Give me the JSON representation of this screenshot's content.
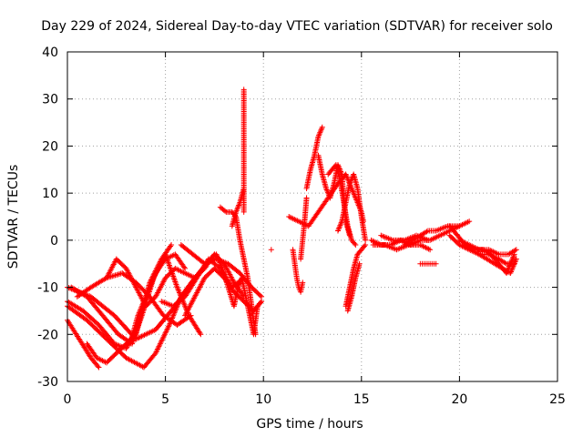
{
  "chart_data": {
    "type": "scatter",
    "title": "Day 229 of 2024, Sidereal Day-to-day VTEC variation (SDTVAR) for receiver solo",
    "xlabel": "GPS time / hours",
    "ylabel": "SDTVAR / TECUs",
    "xlim": [
      0,
      25
    ],
    "ylim": [
      -30,
      40
    ],
    "xticks": [
      0,
      5,
      10,
      15,
      20,
      25
    ],
    "yticks": [
      -30,
      -20,
      -10,
      0,
      10,
      20,
      30,
      40
    ],
    "grid": true,
    "marker": "+",
    "color": "#ff0000",
    "series": [
      {
        "name": "track-1",
        "x": [
          0.0,
          1.0,
          2.0,
          3.0,
          3.9,
          4.5,
          5.2,
          5.8,
          6.5
        ],
        "y": [
          -14,
          -17,
          -21,
          -25,
          -27,
          -24,
          -18,
          -12,
          -8
        ]
      },
      {
        "name": "track-2",
        "x": [
          0.0,
          0.3,
          0.6,
          0.9,
          1.2,
          1.6
        ],
        "y": [
          -17,
          -19,
          -21,
          -23,
          -25,
          -27
        ]
      },
      {
        "name": "track-3",
        "x": [
          0.0,
          1.2,
          2.4,
          3.5,
          4.5,
          5.5,
          6.5,
          7.5
        ],
        "y": [
          -10,
          -12,
          -16,
          -21,
          -19,
          -14,
          -8,
          -3
        ]
      },
      {
        "name": "track-4",
        "x": [
          0.0,
          0.8,
          1.6,
          2.4,
          3.0,
          3.6,
          4.2,
          4.8,
          5.3
        ],
        "y": [
          -13,
          -15,
          -18,
          -22,
          -23,
          -18,
          -9,
          -4,
          -1
        ]
      },
      {
        "name": "track-5",
        "x": [
          0.2,
          1.0,
          1.8,
          2.6,
          3.3,
          3.8,
          4.4,
          5.0,
          5.6,
          6.2,
          6.8
        ],
        "y": [
          -10,
          -12,
          -16,
          -20,
          -22,
          -16,
          -8,
          -3,
          -10,
          -16,
          -20
        ]
      },
      {
        "name": "track-6",
        "x": [
          0.5,
          1.2,
          2.0,
          2.8,
          3.5,
          4.2,
          4.9,
          5.6,
          6.3
        ],
        "y": [
          -12,
          -10,
          -8,
          -7,
          -9,
          -12,
          -16,
          -18,
          -16
        ]
      },
      {
        "name": "track-7",
        "x": [
          1.0,
          1.5,
          2.0,
          2.5,
          3.0,
          3.5,
          4.0,
          4.5,
          5.0,
          5.5,
          6.0
        ],
        "y": [
          -22,
          -25,
          -26,
          -24,
          -22,
          -20,
          -12,
          -7,
          -4,
          -3,
          -6
        ]
      },
      {
        "name": "track-8",
        "x": [
          2.0,
          2.5,
          3.0,
          3.5,
          4.0,
          4.5,
          5.0,
          5.5,
          6.0,
          6.5,
          7.0,
          7.5,
          8.0,
          8.5,
          9.0
        ],
        "y": [
          -8,
          -4,
          -6,
          -10,
          -14,
          -12,
          -8,
          -6,
          -7,
          -8,
          -6,
          -3,
          -5,
          -9,
          -12
        ]
      },
      {
        "name": "track-9",
        "x": [
          3.2,
          3.4,
          3.6,
          3.8,
          4.0
        ],
        "y": [
          -22,
          -19,
          -16,
          -14,
          -12
        ]
      },
      {
        "name": "track-10",
        "x": [
          4.8,
          5.4,
          6.0,
          6.6,
          7.2,
          7.8,
          8.4,
          9.0
        ],
        "y": [
          -13,
          -14,
          -12,
          -8,
          -4,
          -6,
          -10,
          -8
        ]
      },
      {
        "name": "track-11",
        "x": [
          5.8,
          6.4,
          7.0,
          7.6,
          8.2,
          8.8,
          9.4,
          9.9
        ],
        "y": [
          -1,
          -3,
          -5,
          -4,
          -5,
          -7,
          -10,
          -12
        ]
      },
      {
        "name": "track-12",
        "x": [
          6.0,
          6.5,
          7.0,
          7.5,
          8.0,
          8.5,
          9.0,
          9.5,
          9.9
        ],
        "y": [
          -16,
          -12,
          -8,
          -6,
          -8,
          -11,
          -13,
          -15,
          -13
        ]
      },
      {
        "name": "track-13",
        "x": [
          7.6,
          7.9,
          8.2,
          8.5,
          8.7,
          8.9,
          9.1,
          9.3,
          9.5,
          9.7,
          9.9
        ],
        "y": [
          -3,
          -6,
          -10,
          -14,
          -10,
          -8,
          -12,
          -16,
          -20,
          -14,
          -13
        ]
      },
      {
        "name": "track-14",
        "x": [
          7.8,
          8.1,
          8.4,
          8.6,
          8.8,
          9.0,
          9.2,
          9.4,
          9.6
        ],
        "y": [
          7,
          6,
          6,
          5,
          0,
          -4,
          -8,
          -14,
          -20
        ]
      },
      {
        "name": "track-15",
        "x": [
          8.4,
          8.6,
          8.8,
          9.0
        ],
        "y": [
          3,
          6,
          8,
          11
        ]
      },
      {
        "name": "spike-9h",
        "x": [
          9.0,
          9.0,
          9.0,
          9.0,
          9.0,
          9.0,
          9.0,
          9.0,
          9.0,
          9.0,
          9.0,
          9.0
        ],
        "y": [
          32,
          28,
          24,
          21,
          19,
          17,
          15,
          13,
          12,
          10,
          8,
          6
        ]
      },
      {
        "name": "isolated",
        "x": [
          10.4
        ],
        "y": [
          -2
        ]
      },
      {
        "name": "track-16",
        "x": [
          11.5,
          11.6,
          11.7,
          11.8,
          11.9,
          12.0
        ],
        "y": [
          -2,
          -5,
          -8,
          -10,
          -11,
          -9
        ]
      },
      {
        "name": "track-17",
        "x": [
          11.9,
          12.0,
          12.1,
          12.2
        ],
        "y": [
          -4,
          0,
          4,
          9
        ]
      },
      {
        "name": "track-18",
        "x": [
          11.3,
          11.8,
          12.3,
          12.8,
          13.3,
          13.8,
          14.2,
          14.6,
          15.0,
          15.1
        ],
        "y": [
          5,
          4,
          3,
          6,
          9,
          12,
          14,
          10,
          6,
          4
        ]
      },
      {
        "name": "track-19",
        "x": [
          12.2,
          12.4,
          12.6,
          12.8,
          13.0
        ],
        "y": [
          11,
          15,
          18,
          22,
          24
        ]
      },
      {
        "name": "track-20",
        "x": [
          12.8,
          13.0,
          13.2,
          13.4,
          13.6,
          13.8,
          14.0,
          14.2,
          14.4
        ],
        "y": [
          18,
          14,
          11,
          9,
          12,
          16,
          14,
          4,
          1
        ]
      },
      {
        "name": "track-21",
        "x": [
          13.3,
          13.5,
          13.7,
          13.9,
          14.1,
          14.3,
          14.5,
          14.7
        ],
        "y": [
          14,
          15,
          16,
          13,
          8,
          3,
          0,
          -1
        ]
      },
      {
        "name": "track-22",
        "x": [
          13.8,
          14.0,
          14.2,
          14.4,
          14.6,
          14.8,
          15.0,
          15.2
        ],
        "y": [
          2,
          4,
          8,
          12,
          14,
          11,
          5,
          0
        ]
      },
      {
        "name": "track-23",
        "x": [
          14.2,
          14.4,
          14.6,
          14.8,
          15.0,
          15.2
        ],
        "y": [
          -14,
          -10,
          -6,
          -3,
          -2,
          -1
        ]
      },
      {
        "name": "track-24",
        "x": [
          14.3,
          14.5,
          14.7,
          14.9
        ],
        "y": [
          -15,
          -12,
          -8,
          -5
        ]
      },
      {
        "name": "track-25",
        "x": [
          15.5,
          16.0,
          16.5,
          17.0,
          17.5,
          18.0,
          18.5,
          19.0,
          19.5,
          20.0
        ],
        "y": [
          0,
          -1,
          -1,
          0,
          -1,
          0,
          0,
          1,
          2,
          3
        ]
      },
      {
        "name": "track-26",
        "x": [
          15.6,
          16.2,
          16.8,
          17.4,
          18.0,
          18.5
        ],
        "y": [
          -1,
          -1,
          -2,
          -1,
          -1,
          -2
        ]
      },
      {
        "name": "track-27",
        "x": [
          16.0,
          16.6,
          17.2,
          17.8,
          18.4
        ],
        "y": [
          1,
          0,
          0,
          1,
          0
        ]
      },
      {
        "name": "track-28",
        "x": [
          17.2,
          17.6,
          18.0,
          18.4,
          18.8,
          19.4,
          20.0,
          20.5
        ],
        "y": [
          -1,
          0,
          1,
          2,
          2,
          3,
          3,
          4
        ]
      },
      {
        "name": "track-29",
        "x": [
          18.0,
          18.2,
          18.4,
          18.6,
          18.8
        ],
        "y": [
          -5,
          -5,
          -5,
          -5,
          -5
        ]
      },
      {
        "name": "track-30",
        "x": [
          19.5,
          20.0,
          20.5,
          21.0,
          21.5,
          22.0,
          22.4,
          22.8
        ],
        "y": [
          1,
          -1,
          -2,
          -3,
          -3,
          -4,
          -5,
          -5
        ]
      },
      {
        "name": "track-31",
        "x": [
          19.5,
          19.9,
          20.3,
          20.8,
          21.2,
          21.6,
          22.0,
          22.4,
          22.8
        ],
        "y": [
          3,
          1,
          -1,
          -2,
          -2,
          -3,
          -5,
          -7,
          -3
        ]
      },
      {
        "name": "track-32",
        "x": [
          20.0,
          20.5,
          21.0,
          21.5,
          22.0,
          22.5,
          22.9
        ],
        "y": [
          0,
          -1,
          -2,
          -2,
          -3,
          -3,
          -2
        ]
      },
      {
        "name": "track-33",
        "x": [
          21.0,
          21.4,
          21.8,
          22.2,
          22.6,
          22.9
        ],
        "y": [
          -3,
          -4,
          -5,
          -6,
          -7,
          -4
        ]
      }
    ]
  }
}
